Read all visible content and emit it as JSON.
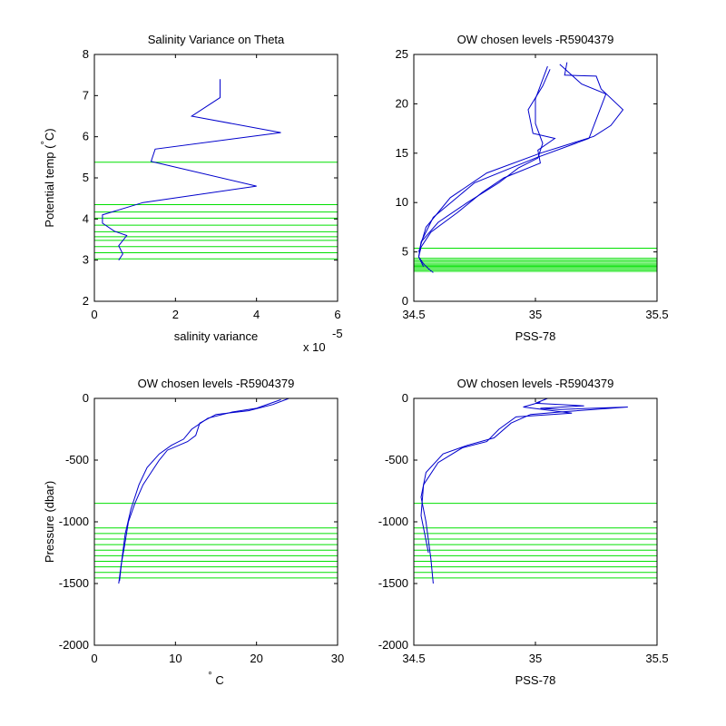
{
  "colors": {
    "profile": "#0000cc",
    "levels": "#00e000",
    "axes": "#000000"
  },
  "chart_data": [
    {
      "type": "line",
      "title": "Salinity Variance on Theta",
      "xlabel": "salinity variance",
      "ylabel": "Potential temp ( C)",
      "ylabel_degree": "°",
      "x_exponent": "x 10",
      "x_exponent_power": "-5",
      "xlim": [
        0,
        6
      ],
      "ylim": [
        2,
        8
      ],
      "xticks": [
        0,
        2,
        4,
        6
      ],
      "yticks": [
        2,
        3,
        4,
        5,
        6,
        7,
        8
      ],
      "xtick_labels": [
        "0",
        "2",
        "4",
        "6"
      ],
      "ytick_labels": [
        "2",
        "3",
        "4",
        "5",
        "6",
        "7",
        "8"
      ],
      "hlines": [
        3.03,
        3.18,
        3.33,
        3.48,
        3.57,
        3.69,
        3.85,
        4.02,
        4.17,
        4.35,
        5.38
      ],
      "series": [
        {
          "x": [
            3.1,
            3.1,
            2.4,
            4.6,
            1.5,
            1.4,
            4.0,
            1.2,
            0.2,
            0.2,
            0.5,
            0.8,
            0.6,
            0.7,
            0.6
          ],
          "y": [
            7.4,
            6.95,
            6.5,
            6.1,
            5.7,
            5.4,
            4.8,
            4.4,
            4.1,
            3.9,
            3.7,
            3.6,
            3.35,
            3.15,
            3.0
          ]
        }
      ]
    },
    {
      "type": "line",
      "title": "OW chosen levels -R5904379",
      "xlabel": "PSS-78",
      "ylabel": "",
      "xlim": [
        34.5,
        35.5
      ],
      "ylim": [
        0,
        25
      ],
      "xticks": [
        34.5,
        35,
        35.5
      ],
      "yticks": [
        0,
        5,
        10,
        15,
        20,
        25
      ],
      "xtick_labels": [
        "34.5",
        "35",
        "35.5"
      ],
      "ytick_labels": [
        "0",
        "5",
        "10",
        "15",
        "20",
        "25"
      ],
      "hlines": [
        3.03,
        3.18,
        3.33,
        3.48,
        3.57,
        3.69,
        3.85,
        4.02,
        4.17,
        4.35,
        5.38
      ],
      "series": [
        {
          "x": [
            35.06,
            35.03,
            34.97,
            34.99,
            35.08,
            35.01,
            35.02,
            34.87,
            34.78,
            34.68,
            34.57,
            34.53,
            34.52,
            34.54,
            34.56,
            34.58
          ],
          "y": [
            23.5,
            21.8,
            19.4,
            17.0,
            16.5,
            15.3,
            14.0,
            12.5,
            11.0,
            9.0,
            7.0,
            5.5,
            4.5,
            3.8,
            3.3,
            2.9
          ]
        },
        {
          "x": [
            35.05,
            35.0,
            35.0,
            35.03,
            35.01,
            34.93,
            34.85,
            34.72,
            34.6,
            34.53,
            34.52,
            34.54
          ],
          "y": [
            23.8,
            20.5,
            18.0,
            16.0,
            14.5,
            13.5,
            12.0,
            10.0,
            8.0,
            6.0,
            4.5,
            3.5
          ]
        },
        {
          "x": [
            35.13,
            35.12,
            35.25,
            35.27,
            35.36,
            35.31,
            35.24,
            35.02,
            34.8,
            34.65,
            34.55,
            34.52
          ],
          "y": [
            24.2,
            22.9,
            22.8,
            21.5,
            19.4,
            17.8,
            16.7,
            15.0,
            13.0,
            10.5,
            7.5,
            5.0
          ]
        },
        {
          "x": [
            35.1,
            35.19,
            35.29,
            35.22,
            35.0,
            34.75,
            34.58,
            34.53
          ],
          "y": [
            24.0,
            22.0,
            21.0,
            16.5,
            14.5,
            12.0,
            8.5,
            6.0
          ]
        }
      ]
    },
    {
      "type": "line",
      "title": "OW chosen levels -R5904379",
      "xlabel": " C",
      "xlabel_degree": "°",
      "ylabel": "Pressure (dbar)",
      "xlim": [
        0,
        30
      ],
      "ylim": [
        -2000,
        0
      ],
      "xticks": [
        0,
        10,
        20,
        30
      ],
      "yticks": [
        0,
        -500,
        -1000,
        -1500,
        -2000
      ],
      "xtick_labels": [
        "0",
        "10",
        "20",
        "30"
      ],
      "ytick_labels": [
        "0",
        "-500",
        "-1000",
        "-1500",
        "-2000"
      ],
      "hlines": [
        -850,
        -1050,
        -1095,
        -1140,
        -1185,
        -1230,
        -1275,
        -1320,
        -1365,
        -1410,
        -1455
      ],
      "series": [
        {
          "x": [
            24,
            22,
            19,
            15,
            13,
            12.5,
            11.5,
            9,
            8,
            7,
            6,
            5,
            4.2,
            3.7,
            3.3,
            3.0
          ],
          "y": [
            0,
            -50,
            -100,
            -130,
            -200,
            -300,
            -350,
            -420,
            -500,
            -600,
            -700,
            -850,
            -1000,
            -1200,
            -1350,
            -1500
          ]
        },
        {
          "x": [
            23,
            20,
            17,
            14,
            12,
            11,
            9.5,
            8,
            6.5,
            5.5,
            4.5,
            3.8,
            3.4,
            3.1
          ],
          "y": [
            -10,
            -80,
            -110,
            -160,
            -250,
            -330,
            -380,
            -450,
            -560,
            -700,
            -900,
            -1100,
            -1300,
            -1480
          ]
        }
      ]
    },
    {
      "type": "line",
      "title": "OW chosen levels -R5904379",
      "xlabel": "PSS-78",
      "ylabel": "",
      "xlim": [
        34.5,
        35.5
      ],
      "ylim": [
        -2000,
        0
      ],
      "xticks": [
        34.5,
        35,
        35.5
      ],
      "yticks": [
        0,
        -500,
        -1000,
        -1500,
        -2000
      ],
      "xtick_labels": [
        "34.5",
        "35",
        "35.5"
      ],
      "ytick_labels": [
        "0",
        "-500",
        "-1000",
        "-1500",
        "-2000"
      ],
      "hlines": [
        -850,
        -1050,
        -1095,
        -1140,
        -1185,
        -1230,
        -1275,
        -1320,
        -1365,
        -1410,
        -1455
      ],
      "series": [
        {
          "x": [
            35.05,
            35.0,
            35.2,
            35.02,
            35.1,
            35.38,
            35.1,
            34.98,
            34.9,
            34.83,
            34.72,
            34.62,
            34.55,
            34.53,
            34.55,
            34.57,
            34.58
          ],
          "y": [
            0,
            -40,
            -60,
            -80,
            -90,
            -70,
            -110,
            -130,
            -200,
            -320,
            -380,
            -450,
            -600,
            -800,
            -1000,
            -1300,
            -1500
          ]
        },
        {
          "x": [
            35.02,
            34.95,
            35.15,
            34.92,
            34.85,
            34.8,
            34.7,
            34.6,
            34.54,
            34.53,
            34.56
          ],
          "y": [
            -30,
            -70,
            -120,
            -150,
            -250,
            -350,
            -400,
            -520,
            -700,
            -950,
            -1250
          ]
        }
      ]
    }
  ]
}
